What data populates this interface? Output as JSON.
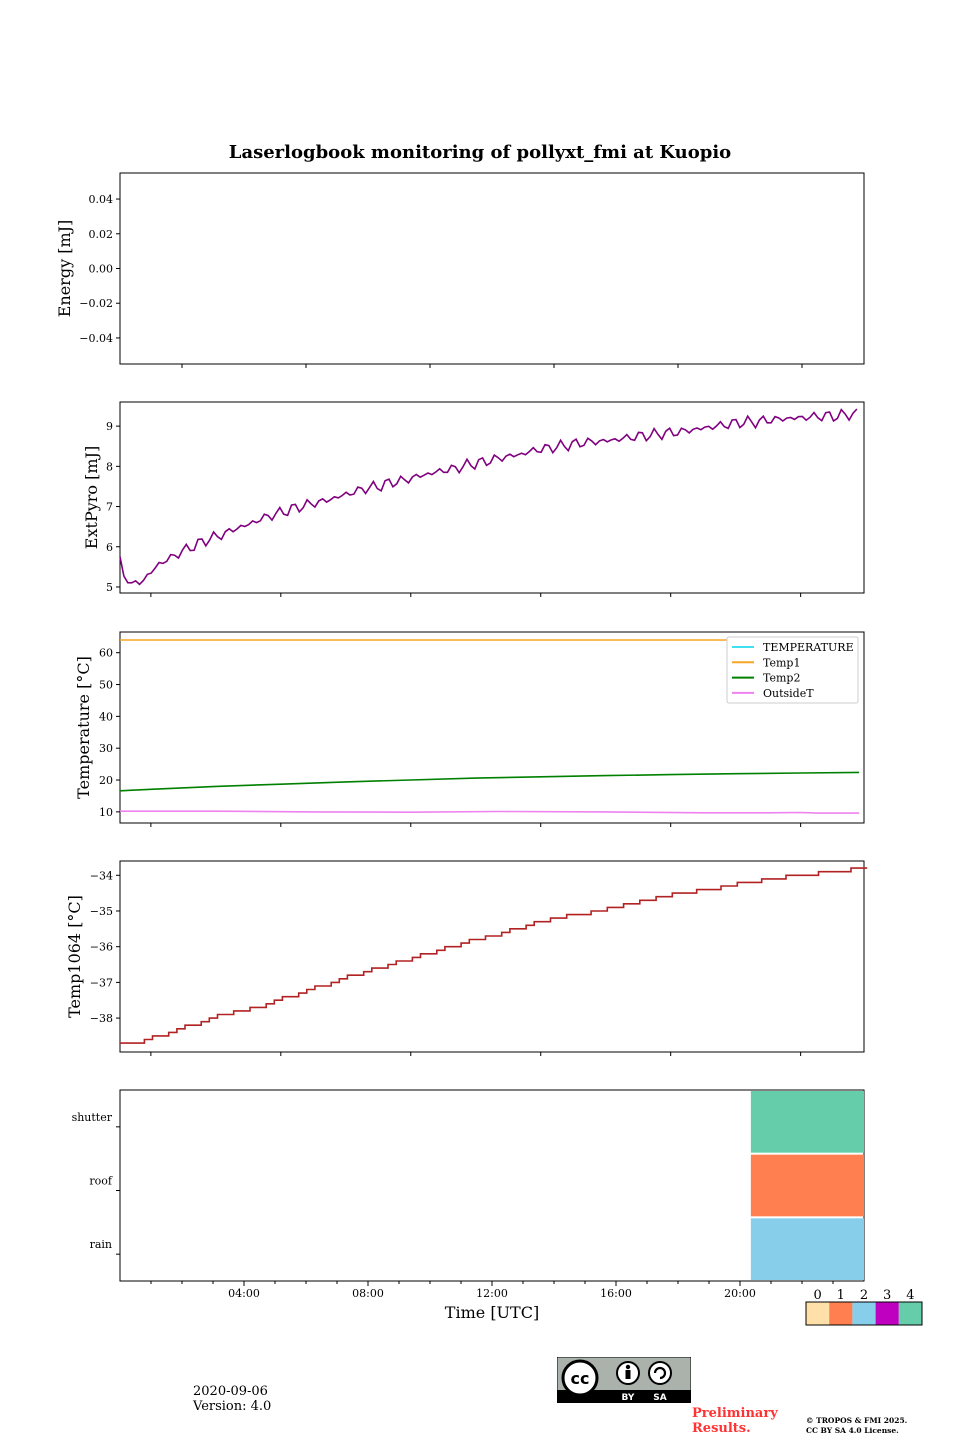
{
  "chart_data": [
    {
      "type": "line",
      "title": "Laserlogbook monitoring of pollyxt_fmi at Kuopio",
      "ylabel": "Energy [mJ]",
      "ylim": [
        -0.055,
        0.055
      ],
      "yticks": [
        0.04,
        0.02,
        0.0,
        -0.02,
        -0.04
      ],
      "ytick_labels": [
        "0.04",
        "0.02",
        "0.00",
        "−0.02",
        "−0.04"
      ],
      "series": []
    },
    {
      "type": "line",
      "ylabel": "ExtPyro [mJ]",
      "xlim_hours": [
        1.05,
        23.95
      ],
      "ylim": [
        4.85,
        9.6
      ],
      "yticks": [
        5,
        6,
        7,
        8,
        9
      ],
      "ytick_labels": [
        "5",
        "6",
        "7",
        "8",
        "9"
      ],
      "series": [
        {
          "name": "ExtPyro",
          "color": "#800080",
          "x": [
            1.05,
            1.2,
            1.4,
            1.6,
            1.8,
            2.0,
            2.2,
            2.6,
            3.0,
            3.4,
            3.8,
            4.2,
            4.6,
            5.0,
            5.4,
            5.8,
            6.2,
            6.6,
            7.0,
            7.4,
            7.8,
            8.2,
            8.6,
            9.0,
            9.4,
            9.8,
            10.2,
            10.6,
            11.0,
            11.4,
            11.8,
            12.2,
            12.6,
            13.0,
            13.4,
            13.8,
            14.2,
            14.6,
            15.0,
            15.4,
            15.8,
            16.2,
            16.6,
            17.0,
            17.4,
            17.8,
            18.2,
            18.6,
            19.0,
            19.4,
            19.8,
            20.2,
            20.6,
            21.0,
            21.4,
            21.8,
            22.2,
            22.6,
            23.0,
            23.4,
            23.8
          ],
          "values": [
            5.75,
            5.15,
            5.05,
            5.1,
            5.2,
            5.35,
            5.55,
            5.72,
            5.9,
            6.05,
            6.2,
            6.3,
            6.45,
            6.55,
            6.7,
            6.8,
            6.9,
            7.0,
            7.08,
            7.15,
            7.25,
            7.35,
            7.45,
            7.5,
            7.6,
            7.65,
            7.75,
            7.82,
            7.9,
            7.95,
            8.05,
            8.1,
            8.18,
            8.25,
            8.3,
            8.4,
            8.45,
            8.5,
            8.55,
            8.6,
            8.62,
            8.65,
            8.7,
            8.75,
            8.78,
            8.82,
            8.85,
            8.9,
            8.95,
            9.0,
            9.05,
            9.1,
            9.1,
            9.15,
            9.18,
            9.2,
            9.22,
            9.25,
            9.25,
            9.28,
            9.32
          ]
        }
      ]
    },
    {
      "type": "line",
      "ylabel": "Temperature [°C]",
      "xlim_hours": [
        1.05,
        23.95
      ],
      "ylim": [
        6.5,
        66.5
      ],
      "yticks": [
        10,
        20,
        30,
        40,
        50,
        60
      ],
      "ytick_labels": [
        "10",
        "20",
        "30",
        "40",
        "50",
        "60"
      ],
      "legend": {
        "position": "top-right",
        "entries": [
          "TEMPERATURE",
          "Temp1",
          "Temp2",
          "OutsideT"
        ]
      },
      "series": [
        {
          "name": "TEMPERATURE",
          "color": "#40e0f0",
          "x": [],
          "values": []
        },
        {
          "name": "Temp1",
          "color": "#f5a623",
          "x": [
            1.05,
            20.4
          ],
          "values": [
            64.0,
            64.0
          ]
        },
        {
          "name": "Temp2",
          "color": "#008000",
          "x": [
            1.05,
            2.0,
            4.0,
            6.0,
            8.0,
            10.0,
            12.0,
            14.0,
            16.0,
            18.0,
            20.0,
            22.0,
            23.8
          ],
          "values": [
            16.6,
            17.1,
            18.0,
            18.7,
            19.4,
            20.0,
            20.6,
            21.0,
            21.4,
            21.7,
            22.0,
            22.2,
            22.4
          ]
        },
        {
          "name": "OutsideT",
          "color": "#ee82ee",
          "x": [
            1.05,
            4.0,
            7.0,
            10.0,
            12.6,
            12.9,
            16.0,
            19.0,
            21.0,
            22.0,
            22.5,
            23.8
          ],
          "values": [
            10.2,
            10.2,
            10.0,
            9.9,
            10.1,
            10.1,
            10.0,
            9.7,
            9.7,
            9.8,
            9.6,
            9.6
          ]
        }
      ]
    },
    {
      "type": "line",
      "ylabel": "Temp1064 [°C]",
      "xlim_hours": [
        1.05,
        23.95
      ],
      "ylim": [
        -38.95,
        -33.6
      ],
      "yticks": [
        -34,
        -35,
        -36,
        -37,
        -38
      ],
      "ytick_labels": [
        "−34",
        "−35",
        "−36",
        "−37",
        "−38"
      ],
      "series": [
        {
          "name": "Temp1064",
          "color": "#b22222",
          "x": [
            1.05,
            1.5,
            2.0,
            3.0,
            4.0,
            5.0,
            6.0,
            7.0,
            8.0,
            9.0,
            10.0,
            11.0,
            12.0,
            13.0,
            14.0,
            15.0,
            16.0,
            17.0,
            18.0,
            19.0,
            20.0,
            21.0,
            22.0,
            23.0,
            23.8
          ],
          "values": [
            -38.7,
            -38.7,
            -38.55,
            -38.25,
            -37.95,
            -37.75,
            -37.45,
            -37.15,
            -36.85,
            -36.6,
            -36.3,
            -36.05,
            -35.8,
            -35.55,
            -35.3,
            -35.1,
            -34.95,
            -34.75,
            -34.55,
            -34.4,
            -34.25,
            -34.1,
            -34.0,
            -33.9,
            -33.8
          ]
        }
      ]
    },
    {
      "type": "heatmap",
      "xlabel": "Time [UTC]",
      "xlim_hours": [
        0.0,
        24.0
      ],
      "xticks": [
        4,
        8,
        12,
        16,
        20
      ],
      "xtick_labels": [
        "04:00",
        "08:00",
        "12:00",
        "16:00",
        "20:00"
      ],
      "rows": [
        "shutter",
        "roof",
        "rain"
      ],
      "segments": [
        {
          "row": "shutter",
          "start_hour": 20.35,
          "end_hour": 24.0,
          "value": 4
        },
        {
          "row": "roof",
          "start_hour": 20.35,
          "end_hour": 24.0,
          "value": 1
        },
        {
          "row": "rain",
          "start_hour": 20.35,
          "end_hour": 24.0,
          "value": 2
        }
      ],
      "colorbar": {
        "labels": [
          "0",
          "1",
          "2",
          "3",
          "4"
        ],
        "colors": [
          "#ffe0a8",
          "#ff7f50",
          "#87ceeb",
          "#c000c0",
          "#66cdaa"
        ]
      }
    }
  ],
  "footer": {
    "date": "2020-09-06",
    "version": "Version: 4.0",
    "preliminary": [
      "Preliminary",
      "Results."
    ],
    "copyright": [
      "© TROPOS & FMI 2025.",
      "CC BY SA 4.0 License."
    ],
    "license_badge": {
      "by": "BY",
      "sa": "SA"
    }
  }
}
